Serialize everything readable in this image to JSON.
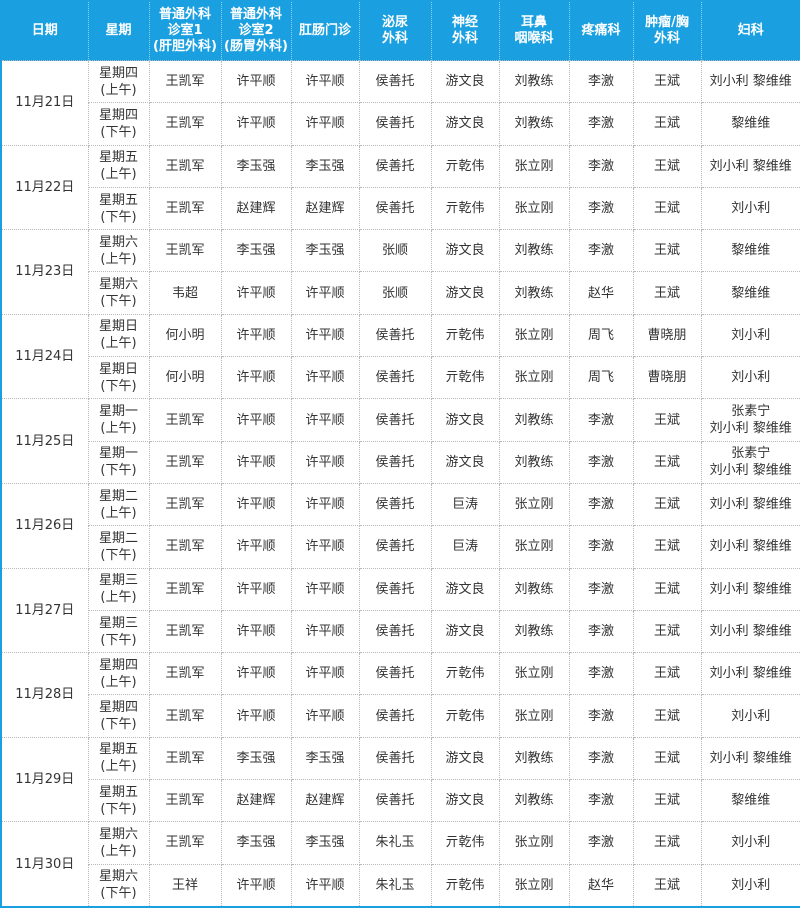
{
  "colors": {
    "header_bg": "#1a9fe0",
    "header_text": "#ffffff",
    "border": "#1a9fe0"
  },
  "headers": [
    "日期",
    "星期",
    "普通外科\n诊室1\n(肝胆外科)",
    "普通外科\n诊室2\n(肠胃外科)",
    "肛肠门诊",
    "泌尿\n外科",
    "神经\n外科",
    "耳鼻\n咽喉科",
    "疼痛科",
    "肿瘤/胸\n外科",
    "妇科"
  ],
  "dates": [
    {
      "date": "11月21日",
      "sessions": [
        {
          "weekday": "星期四",
          "period": "(上午)",
          "doctors": [
            "王凯军",
            "许平顺",
            "许平顺",
            "侯善托",
            "游文良",
            "刘教练",
            "李激",
            "王斌",
            "刘小利 黎维维"
          ]
        },
        {
          "weekday": "星期四",
          "period": "(下午)",
          "doctors": [
            "王凯军",
            "许平顺",
            "许平顺",
            "侯善托",
            "游文良",
            "刘教练",
            "李激",
            "王斌",
            "黎维维"
          ]
        }
      ]
    },
    {
      "date": "11月22日",
      "sessions": [
        {
          "weekday": "星期五",
          "period": "(上午)",
          "doctors": [
            "王凯军",
            "李玉强",
            "李玉强",
            "侯善托",
            "亓乾伟",
            "张立刚",
            "李激",
            "王斌",
            "刘小利 黎维维"
          ]
        },
        {
          "weekday": "星期五",
          "period": "(下午)",
          "doctors": [
            "王凯军",
            "赵建辉",
            "赵建辉",
            "侯善托",
            "亓乾伟",
            "张立刚",
            "李激",
            "王斌",
            "刘小利"
          ]
        }
      ]
    },
    {
      "date": "11月23日",
      "sessions": [
        {
          "weekday": "星期六",
          "period": "(上午)",
          "doctors": [
            "王凯军",
            "李玉强",
            "李玉强",
            "张顺",
            "游文良",
            "刘教练",
            "李激",
            "王斌",
            "黎维维"
          ]
        },
        {
          "weekday": "星期六",
          "period": "(下午)",
          "doctors": [
            "韦超",
            "许平顺",
            "许平顺",
            "张顺",
            "游文良",
            "刘教练",
            "赵华",
            "王斌",
            "黎维维"
          ]
        }
      ]
    },
    {
      "date": "11月24日",
      "sessions": [
        {
          "weekday": "星期日",
          "period": "(上午)",
          "doctors": [
            "何小明",
            "许平顺",
            "许平顺",
            "侯善托",
            "亓乾伟",
            "张立刚",
            "周飞",
            "曹晓朋",
            "刘小利"
          ]
        },
        {
          "weekday": "星期日",
          "period": "(下午)",
          "doctors": [
            "何小明",
            "许平顺",
            "许平顺",
            "侯善托",
            "亓乾伟",
            "张立刚",
            "周飞",
            "曹晓朋",
            "刘小利"
          ]
        }
      ]
    },
    {
      "date": "11月25日",
      "sessions": [
        {
          "weekday": "星期一",
          "period": "(上午)",
          "doctors": [
            "王凯军",
            "许平顺",
            "许平顺",
            "侯善托",
            "游文良",
            "刘教练",
            "李激",
            "王斌",
            "张素宁\n刘小利 黎维维"
          ]
        },
        {
          "weekday": "星期一",
          "period": "(下午)",
          "doctors": [
            "王凯军",
            "许平顺",
            "许平顺",
            "侯善托",
            "游文良",
            "刘教练",
            "李激",
            "王斌",
            "张素宁\n刘小利 黎维维"
          ]
        }
      ]
    },
    {
      "date": "11月26日",
      "sessions": [
        {
          "weekday": "星期二",
          "period": "(上午)",
          "doctors": [
            "王凯军",
            "许平顺",
            "许平顺",
            "侯善托",
            "巨涛",
            "张立刚",
            "李激",
            "王斌",
            "刘小利 黎维维"
          ]
        },
        {
          "weekday": "星期二",
          "period": "(下午)",
          "doctors": [
            "王凯军",
            "许平顺",
            "许平顺",
            "侯善托",
            "巨涛",
            "张立刚",
            "李激",
            "王斌",
            "刘小利 黎维维"
          ]
        }
      ]
    },
    {
      "date": "11月27日",
      "sessions": [
        {
          "weekday": "星期三",
          "period": "(上午)",
          "doctors": [
            "王凯军",
            "许平顺",
            "许平顺",
            "侯善托",
            "游文良",
            "刘教练",
            "李激",
            "王斌",
            "刘小利 黎维维"
          ]
        },
        {
          "weekday": "星期三",
          "period": "(下午)",
          "doctors": [
            "王凯军",
            "许平顺",
            "许平顺",
            "侯善托",
            "游文良",
            "刘教练",
            "李激",
            "王斌",
            "刘小利 黎维维"
          ]
        }
      ]
    },
    {
      "date": "11月28日",
      "sessions": [
        {
          "weekday": "星期四",
          "period": "(上午)",
          "doctors": [
            "王凯军",
            "许平顺",
            "许平顺",
            "侯善托",
            "亓乾伟",
            "张立刚",
            "李激",
            "王斌",
            "刘小利 黎维维"
          ]
        },
        {
          "weekday": "星期四",
          "period": "(下午)",
          "doctors": [
            "王凯军",
            "许平顺",
            "许平顺",
            "侯善托",
            "亓乾伟",
            "张立刚",
            "李激",
            "王斌",
            "刘小利"
          ]
        }
      ]
    },
    {
      "date": "11月29日",
      "sessions": [
        {
          "weekday": "星期五",
          "period": "(上午)",
          "doctors": [
            "王凯军",
            "李玉强",
            "李玉强",
            "侯善托",
            "游文良",
            "刘教练",
            "李激",
            "王斌",
            "刘小利 黎维维"
          ]
        },
        {
          "weekday": "星期五",
          "period": "(下午)",
          "doctors": [
            "王凯军",
            "赵建辉",
            "赵建辉",
            "侯善托",
            "游文良",
            "刘教练",
            "李激",
            "王斌",
            "黎维维"
          ]
        }
      ]
    },
    {
      "date": "11月30日",
      "sessions": [
        {
          "weekday": "星期六",
          "period": "(上午)",
          "doctors": [
            "王凯军",
            "李玉强",
            "李玉强",
            "朱礼玉",
            "亓乾伟",
            "张立刚",
            "李激",
            "王斌",
            "刘小利"
          ]
        },
        {
          "weekday": "星期六",
          "period": "(下午)",
          "doctors": [
            "王祥",
            "许平顺",
            "许平顺",
            "朱礼玉",
            "亓乾伟",
            "张立刚",
            "赵华",
            "王斌",
            "刘小利"
          ]
        }
      ]
    }
  ]
}
